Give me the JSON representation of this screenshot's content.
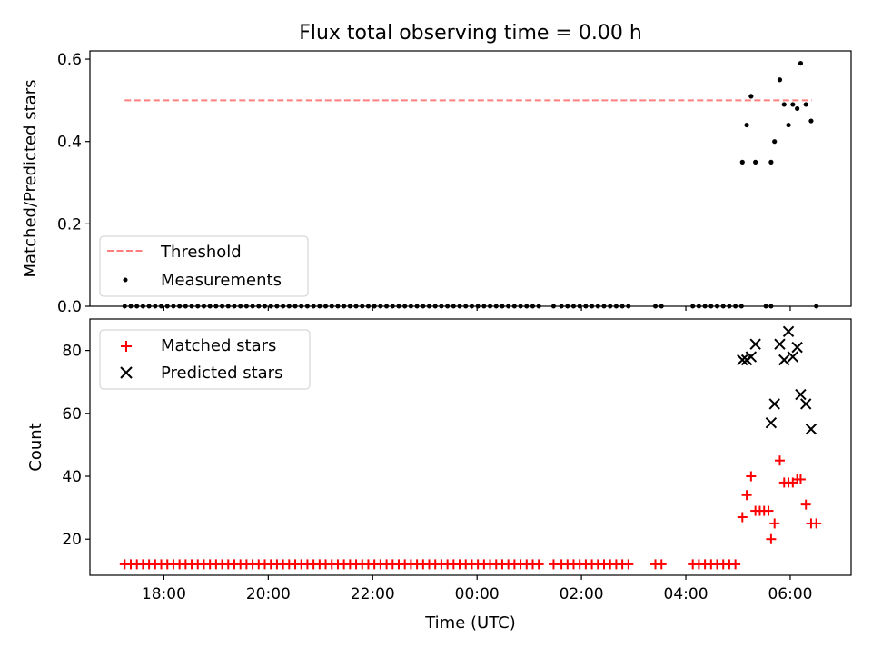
{
  "title": "Flux total observing time = 0.00 h",
  "colors": {
    "threshold": "#ff7f7f",
    "measurement": "#000000",
    "matched": "#ff0000",
    "predicted": "#000000"
  },
  "chart_data": [
    {
      "type": "scatter",
      "panel": "top",
      "xlabel": "",
      "ylabel": "Matched/Predicted stars",
      "xlim": [
        "16:35",
        "07:10"
      ],
      "ylim": [
        0.0,
        0.62
      ],
      "y_ticks": [
        0.0,
        0.2,
        0.4,
        0.6
      ],
      "y_tick_labels": [
        "0.0",
        "0.2",
        "0.4",
        "0.6"
      ],
      "x_tick_labels_shown": false,
      "grid": false,
      "legend": {
        "placement": "lower-left",
        "entries": [
          "Threshold",
          "Measurements"
        ]
      },
      "threshold": {
        "name": "Threshold",
        "value": 0.5,
        "x_range": [
          "17:15",
          "06:25"
        ]
      },
      "measurements": {
        "name": "Measurements",
        "x": [
          "05:05",
          "05:10",
          "05:15",
          "05:20",
          "05:38",
          "05:42",
          "05:48",
          "05:53",
          "05:58",
          "06:03",
          "06:08",
          "06:12",
          "06:18",
          "06:24"
        ],
        "y": [
          0.35,
          0.44,
          0.51,
          0.35,
          0.35,
          0.4,
          0.55,
          0.49,
          0.44,
          0.49,
          0.48,
          0.59,
          0.49,
          0.45
        ]
      },
      "zero_measurements_x": [
        "17:15",
        "17:22",
        "17:29",
        "17:36",
        "17:43",
        "17:50",
        "17:57",
        "18:04",
        "18:11",
        "18:18",
        "18:25",
        "18:32",
        "18:39",
        "18:46",
        "18:53",
        "19:00",
        "19:07",
        "19:14",
        "19:21",
        "19:28",
        "19:35",
        "19:42",
        "19:49",
        "19:56",
        "20:03",
        "20:10",
        "20:17",
        "20:24",
        "20:31",
        "20:38",
        "20:45",
        "20:52",
        "20:59",
        "21:06",
        "21:13",
        "21:20",
        "21:27",
        "21:34",
        "21:41",
        "21:48",
        "21:55",
        "22:02",
        "22:09",
        "22:16",
        "22:23",
        "22:30",
        "22:37",
        "22:44",
        "22:51",
        "22:58",
        "23:05",
        "23:12",
        "23:19",
        "23:26",
        "23:33",
        "23:40",
        "23:47",
        "23:54",
        "00:01",
        "00:08",
        "00:15",
        "00:22",
        "00:29",
        "00:36",
        "00:43",
        "00:50",
        "00:57",
        "01:04",
        "01:11",
        "01:28",
        "01:37",
        "01:44",
        "01:51",
        "01:58",
        "02:05",
        "02:12",
        "02:19",
        "02:26",
        "02:33",
        "02:40",
        "02:47",
        "02:54",
        "03:25",
        "03:32",
        "04:08",
        "04:15",
        "04:22",
        "04:29",
        "04:36",
        "04:43",
        "04:50",
        "04:57",
        "05:04",
        "05:32",
        "05:38",
        "06:30"
      ]
    },
    {
      "type": "scatter",
      "panel": "bottom",
      "xlabel": "Time (UTC)",
      "ylabel": "Count",
      "xlim": [
        "16:35",
        "07:10"
      ],
      "ylim": [
        8.5,
        90
      ],
      "y_ticks": [
        20,
        40,
        60,
        80
      ],
      "y_tick_labels": [
        "20",
        "40",
        "60",
        "80"
      ],
      "x_ticks": [
        "18:00",
        "20:00",
        "22:00",
        "00:00",
        "02:00",
        "04:00",
        "06:00"
      ],
      "x_tick_labels": [
        "18:00",
        "20:00",
        "22:00",
        "00:00",
        "02:00",
        "04:00",
        "06:00"
      ],
      "grid": false,
      "legend": {
        "placement": "upper-left",
        "entries": [
          "Matched stars",
          "Predicted stars"
        ]
      },
      "baseline_matched": {
        "value": 12,
        "x": [
          "17:15",
          "17:22",
          "17:29",
          "17:36",
          "17:43",
          "17:50",
          "17:57",
          "18:04",
          "18:11",
          "18:18",
          "18:25",
          "18:32",
          "18:39",
          "18:46",
          "18:53",
          "19:00",
          "19:07",
          "19:14",
          "19:21",
          "19:28",
          "19:35",
          "19:42",
          "19:49",
          "19:56",
          "20:03",
          "20:10",
          "20:17",
          "20:24",
          "20:31",
          "20:38",
          "20:45",
          "20:52",
          "20:59",
          "21:06",
          "21:13",
          "21:20",
          "21:27",
          "21:34",
          "21:41",
          "21:48",
          "21:55",
          "22:02",
          "22:09",
          "22:16",
          "22:23",
          "22:30",
          "22:37",
          "22:44",
          "22:51",
          "22:58",
          "23:05",
          "23:12",
          "23:19",
          "23:26",
          "23:33",
          "23:40",
          "23:47",
          "23:54",
          "00:01",
          "00:08",
          "00:15",
          "00:22",
          "00:29",
          "00:36",
          "00:43",
          "00:50",
          "00:57",
          "01:04",
          "01:11",
          "01:28",
          "01:37",
          "01:44",
          "01:51",
          "01:58",
          "02:05",
          "02:12",
          "02:19",
          "02:26",
          "02:33",
          "02:40",
          "02:47",
          "02:54",
          "03:25",
          "03:32",
          "04:08",
          "04:15",
          "04:22",
          "04:29",
          "04:36",
          "04:43",
          "04:50",
          "04:57"
        ]
      },
      "series": [
        {
          "name": "Matched stars",
          "marker": "+",
          "x": [
            "05:05",
            "05:10",
            "05:15",
            "05:20",
            "05:25",
            "05:30",
            "05:35",
            "05:38",
            "05:42",
            "05:48",
            "05:53",
            "05:58",
            "06:03",
            "06:08",
            "06:12",
            "06:18",
            "06:24",
            "06:30"
          ],
          "y": [
            27,
            34,
            40,
            29,
            29,
            29,
            29,
            20,
            25,
            45,
            38,
            38,
            38,
            39,
            39,
            31,
            25,
            25
          ]
        },
        {
          "name": "Predicted stars",
          "marker": "x",
          "x": [
            "05:05",
            "05:10",
            "05:15",
            "05:20",
            "05:38",
            "05:42",
            "05:48",
            "05:53",
            "05:58",
            "06:03",
            "06:08",
            "06:12",
            "06:18",
            "06:24"
          ],
          "y": [
            77,
            77,
            78,
            82,
            57,
            63,
            82,
            77,
            86,
            78,
            81,
            66,
            63,
            55
          ]
        }
      ]
    }
  ]
}
